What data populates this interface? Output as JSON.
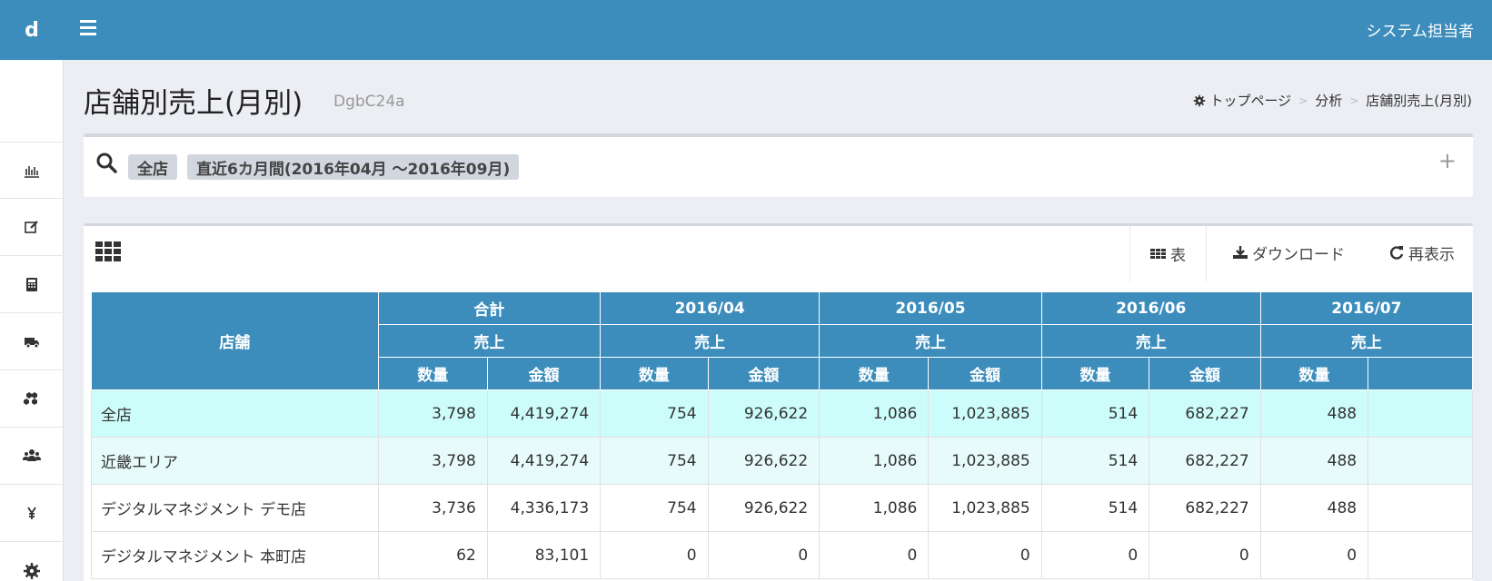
{
  "header": {
    "logo": "d",
    "user": "システム担当者"
  },
  "page": {
    "title": "店舗別売上(月別)",
    "subtitle": "DgbC24a",
    "breadcrumb": [
      "トップページ",
      "分析",
      "店舗別売上(月別)"
    ]
  },
  "filter": {
    "tags": [
      "全店",
      "直近6カ月間(2016年04月 〜2016年09月)"
    ],
    "expand": "+"
  },
  "toolbar": {
    "tab_table": "表",
    "tab_download": "ダウンロード",
    "tab_refresh": "再表示"
  },
  "table": {
    "store_header": "店舗",
    "periods": [
      "合計",
      "2016/04",
      "2016/05",
      "2016/06",
      "2016/07"
    ],
    "group_label": "売上",
    "qty_label": "数量",
    "amount_label": "金額",
    "rows": [
      {
        "store": "全店",
        "cells": [
          "3,798",
          "4,419,274",
          "754",
          "926,622",
          "1,086",
          "1,023,885",
          "514",
          "682,227",
          "488"
        ]
      },
      {
        "store": "近畿エリア",
        "cells": [
          "3,798",
          "4,419,274",
          "754",
          "926,622",
          "1,086",
          "1,023,885",
          "514",
          "682,227",
          "488"
        ]
      },
      {
        "store": "デジタルマネジメント デモ店",
        "cells": [
          "3,736",
          "4,336,173",
          "754",
          "926,622",
          "1,086",
          "1,023,885",
          "514",
          "682,227",
          "488"
        ]
      },
      {
        "store": "デジタルマネジメント 本町店",
        "cells": [
          "62",
          "83,101",
          "0",
          "0",
          "0",
          "0",
          "0",
          "0",
          "0"
        ]
      }
    ]
  },
  "colors": {
    "primary": "#3c8dbc",
    "row_total": "#ccfdfb",
    "row_area": "#e7fcfa"
  },
  "icons": {
    "sidebar": [
      "bar-chart-icon",
      "edit-icon",
      "calculator-icon",
      "truck-icon",
      "cubes-icon",
      "users-icon",
      "yen-icon",
      "gear-icon"
    ]
  }
}
